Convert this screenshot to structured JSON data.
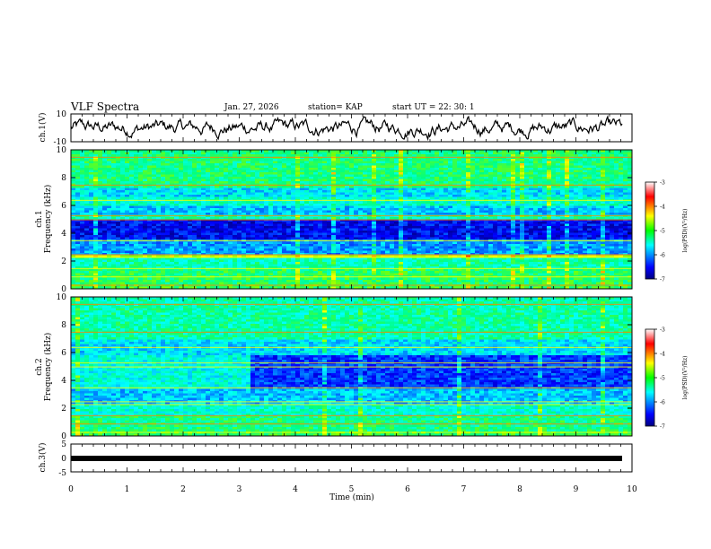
{
  "header": {
    "title": "VLF Spectra",
    "date": "Jan. 27, 2026",
    "station": "station= KAP",
    "start_ut": "start  UT =  22: 30: 1"
  },
  "chart_data": [
    {
      "type": "line",
      "panel": "ch1-waveform",
      "ylabel": "ch.1(V)",
      "ylim": [
        -10,
        10
      ],
      "yticks": [
        "10",
        "-10"
      ],
      "xlim": [
        0,
        10
      ],
      "series_description": "noisy voltage trace oscillating roughly between -6 and 6 V"
    },
    {
      "type": "heatmap",
      "panel": "ch1-spectrogram",
      "ylabel": "ch.1\nFrequency (kHz)",
      "ylabel_line1": "ch.1",
      "ylabel_line2": "Frequency (kHz)",
      "ylim": [
        0,
        10
      ],
      "yticks": [
        "0",
        "2",
        "4",
        "6",
        "8",
        "10"
      ],
      "xlim": [
        0,
        10
      ],
      "colorbar": {
        "label": "log(PSD)(V²/Hz)",
        "range": [
          -7,
          -3
        ],
        "ticks": [
          "-3",
          "-4",
          "-5",
          "-6",
          "-7"
        ]
      }
    },
    {
      "type": "heatmap",
      "panel": "ch2-spectrogram",
      "ylabel_line1": "ch.2",
      "ylabel_line2": "Frequency (kHz)",
      "ylim": [
        0,
        10
      ],
      "yticks": [
        "0",
        "2",
        "4",
        "6",
        "8",
        "10"
      ],
      "xlim": [
        0,
        10
      ],
      "colorbar": {
        "label": "log(PSD)(V²/Hz)",
        "range": [
          -7,
          -3
        ],
        "ticks": [
          "-3",
          "-4",
          "-5",
          "-6",
          "-7"
        ]
      }
    },
    {
      "type": "line",
      "panel": "ch3-waveform",
      "ylabel": "ch.3(V)",
      "ylim": [
        -5,
        5
      ],
      "yticks": [
        "5",
        "0",
        "-5"
      ],
      "xlim": [
        0,
        10
      ],
      "series_description": "flat thick band near 0 V"
    }
  ],
  "xaxis": {
    "label": "Time  (min)",
    "ticks": [
      "0",
      "1",
      "2",
      "3",
      "4",
      "5",
      "6",
      "7",
      "8",
      "9",
      "10"
    ]
  },
  "colors": {
    "scale": [
      "#00008b",
      "#0000ff",
      "#0080ff",
      "#00ffff",
      "#00ff80",
      "#80ff00",
      "#ffff00",
      "#ff8000",
      "#ff0000",
      "#ffffff"
    ]
  }
}
